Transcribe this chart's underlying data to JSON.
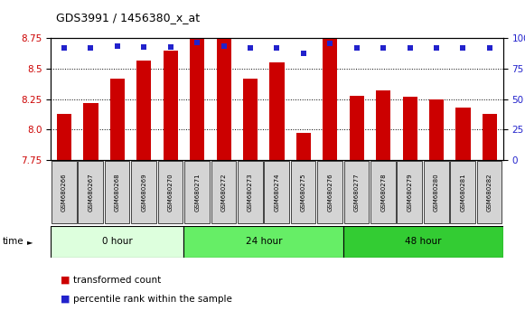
{
  "title": "GDS3991 / 1456380_x_at",
  "samples": [
    "GSM680266",
    "GSM680267",
    "GSM680268",
    "GSM680269",
    "GSM680270",
    "GSM680271",
    "GSM680272",
    "GSM680273",
    "GSM680274",
    "GSM680275",
    "GSM680276",
    "GSM680277",
    "GSM680278",
    "GSM680279",
    "GSM680280",
    "GSM680281",
    "GSM680282"
  ],
  "transformed_count": [
    8.13,
    8.22,
    8.42,
    8.57,
    8.65,
    8.75,
    8.75,
    8.42,
    8.55,
    7.97,
    8.75,
    8.28,
    8.32,
    8.27,
    8.25,
    8.18,
    8.13
  ],
  "percentile_rank": [
    92,
    92,
    94,
    93,
    93,
    97,
    94,
    92,
    92,
    88,
    96,
    92,
    92,
    92,
    92,
    92,
    92
  ],
  "ymin": 7.75,
  "ymax": 8.75,
  "y_ticks_left": [
    7.75,
    8.0,
    8.25,
    8.5,
    8.75
  ],
  "y_ticks_right": [
    0,
    25,
    50,
    75,
    100
  ],
  "bar_color": "#cc0000",
  "dot_color": "#2222cc",
  "groups": [
    {
      "label": "0 hour",
      "start": 0,
      "end": 5,
      "color": "#ddffdd"
    },
    {
      "label": "24 hour",
      "start": 5,
      "end": 11,
      "color": "#66ee66"
    },
    {
      "label": "48 hour",
      "start": 11,
      "end": 17,
      "color": "#33cc33"
    }
  ],
  "background_color": "#ffffff",
  "plot_bg_color": "#ffffff",
  "tick_label_color_left": "#cc0000",
  "tick_label_color_right": "#2222cc",
  "legend_items": [
    "transformed count",
    "percentile rank within the sample"
  ],
  "figsize": [
    5.81,
    3.54
  ],
  "dpi": 100
}
